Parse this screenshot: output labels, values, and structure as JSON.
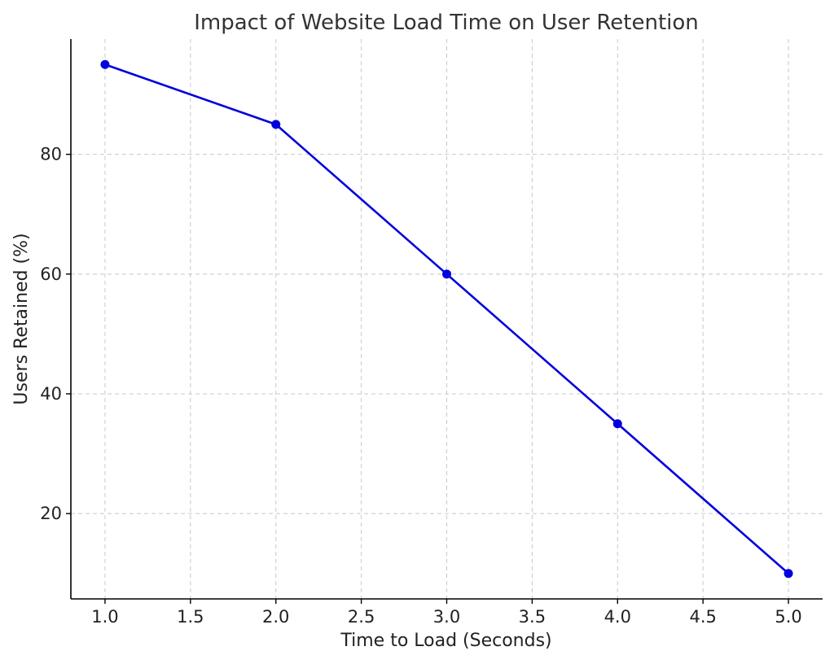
{
  "chart_data": {
    "type": "line",
    "title": "Impact of Website Load Time on User Retention",
    "xlabel": "Time to Load (Seconds)",
    "ylabel": "Users Retained (%)",
    "x": [
      1,
      2,
      3,
      4,
      5
    ],
    "series": [
      {
        "values": [
          95,
          85,
          60,
          35,
          10
        ],
        "color": "#0000dd"
      }
    ],
    "xlim": [
      0.8,
      5.2
    ],
    "ylim": [
      5.75,
      99.25
    ],
    "x_ticks": [
      1.0,
      1.5,
      2.0,
      2.5,
      3.0,
      3.5,
      4.0,
      4.5,
      5.0
    ],
    "x_tick_labels": [
      "1.0",
      "1.5",
      "2.0",
      "2.5",
      "3.0",
      "3.5",
      "4.0",
      "4.5",
      "5.0"
    ],
    "y_ticks": [
      20,
      40,
      60,
      80
    ],
    "y_tick_labels": [
      "20",
      "40",
      "60",
      "80"
    ],
    "grid": true,
    "legend": "none"
  }
}
